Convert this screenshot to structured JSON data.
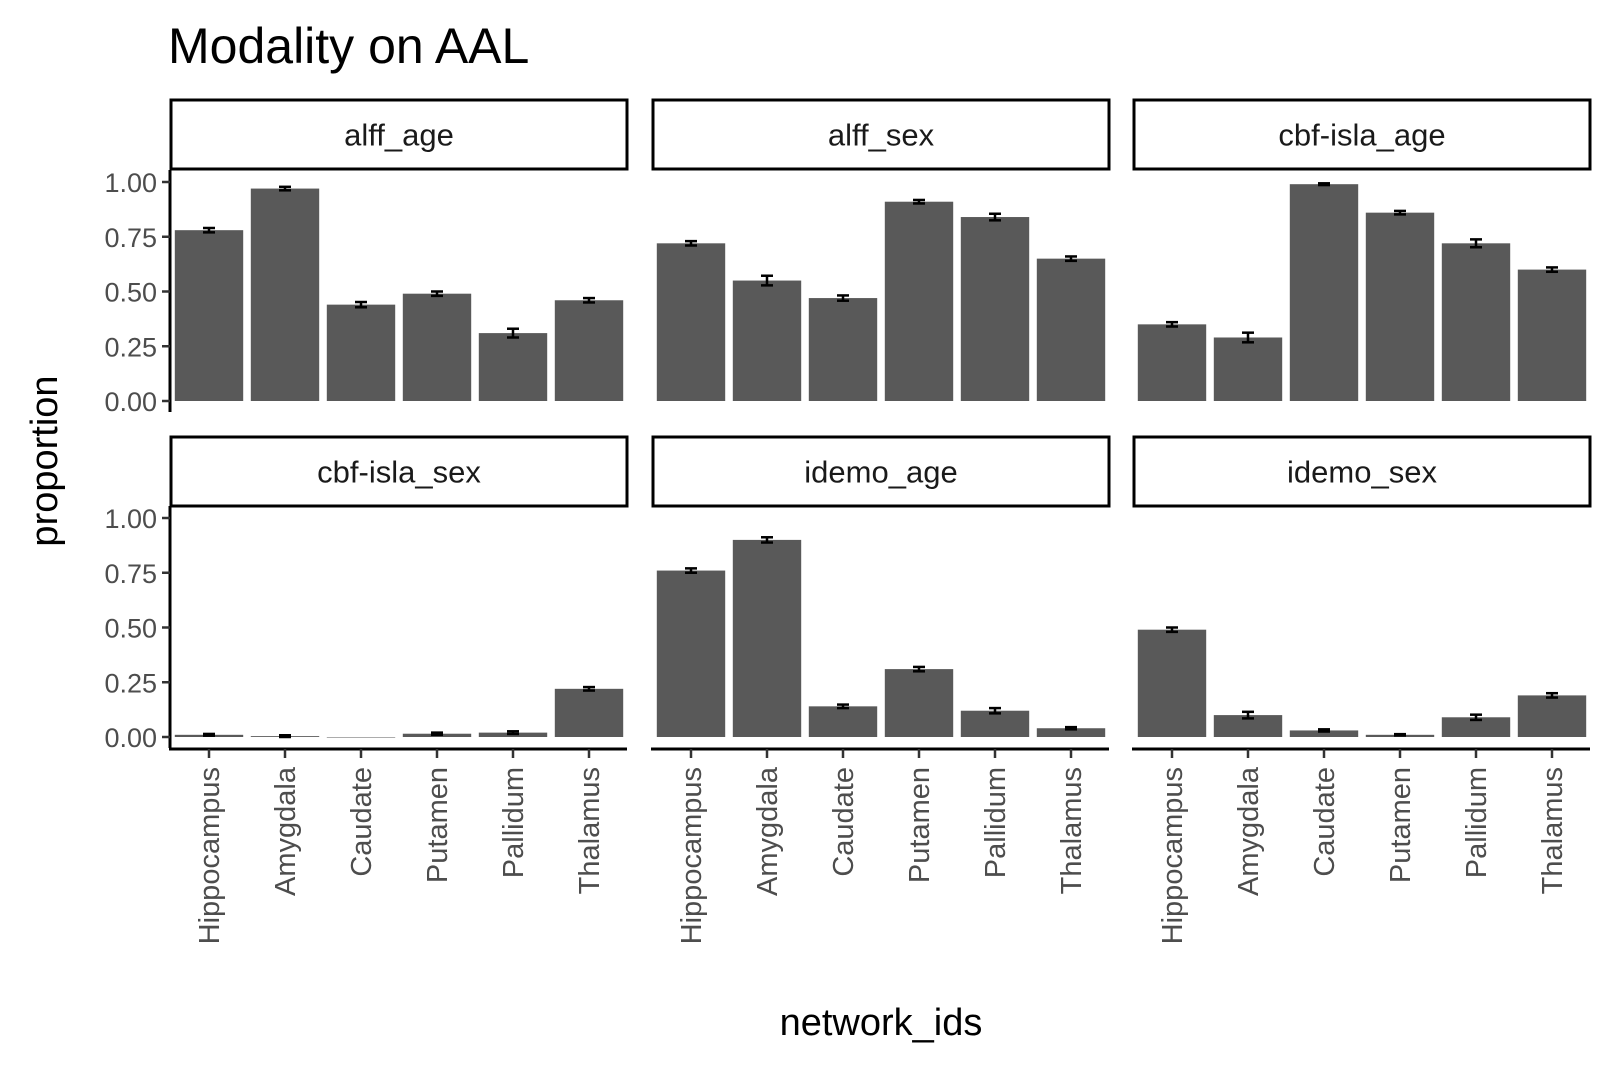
{
  "chart_data": {
    "type": "bar",
    "title": "Modality on AAL",
    "xlabel": "network_ids",
    "ylabel": "proportion",
    "ylim": [
      0,
      1
    ],
    "yticks": [
      "0.00",
      "0.25",
      "0.50",
      "0.75",
      "1.00"
    ],
    "categories": [
      "Hippocampus",
      "Amygdala",
      "Caudate",
      "Putamen",
      "Pallidum",
      "Thalamus"
    ],
    "bar_color": "#595959",
    "grid": false,
    "facets": [
      {
        "name": "alff_age",
        "values": [
          0.78,
          0.97,
          0.44,
          0.49,
          0.31,
          0.46
        ],
        "errors": [
          0.01,
          0.008,
          0.012,
          0.01,
          0.02,
          0.01
        ]
      },
      {
        "name": "alff_sex",
        "values": [
          0.72,
          0.55,
          0.47,
          0.91,
          0.84,
          0.65
        ],
        "errors": [
          0.01,
          0.022,
          0.012,
          0.008,
          0.015,
          0.01
        ]
      },
      {
        "name": "cbf-isla_age",
        "values": [
          0.35,
          0.29,
          0.99,
          0.86,
          0.72,
          0.6
        ],
        "errors": [
          0.01,
          0.022,
          0.004,
          0.008,
          0.018,
          0.01
        ]
      },
      {
        "name": "cbf-isla_sex",
        "values": [
          0.01,
          0.004,
          0.0,
          0.015,
          0.02,
          0.22
        ],
        "errors": [
          0.004,
          0.004,
          0.0,
          0.005,
          0.006,
          0.008
        ]
      },
      {
        "name": "idemo_age",
        "values": [
          0.76,
          0.9,
          0.14,
          0.31,
          0.12,
          0.04
        ],
        "errors": [
          0.01,
          0.012,
          0.008,
          0.01,
          0.012,
          0.005
        ]
      },
      {
        "name": "idemo_sex",
        "values": [
          0.49,
          0.1,
          0.03,
          0.01,
          0.09,
          0.19
        ],
        "errors": [
          0.01,
          0.015,
          0.005,
          0.003,
          0.012,
          0.01
        ]
      }
    ]
  }
}
